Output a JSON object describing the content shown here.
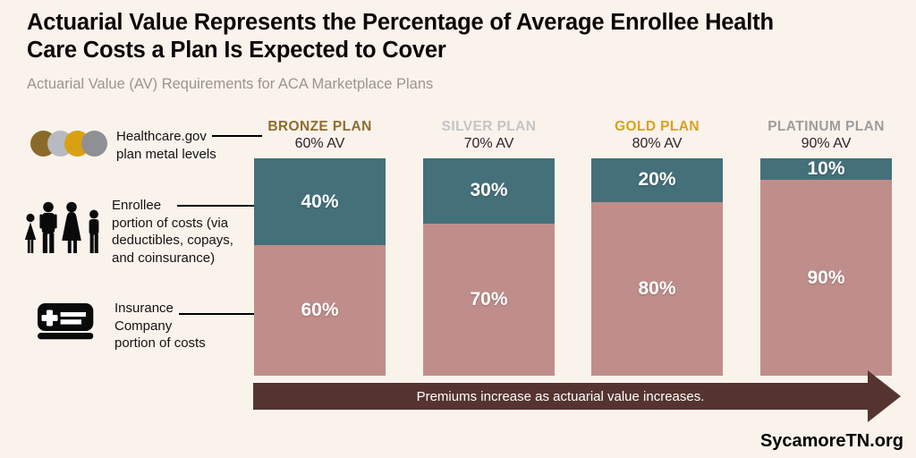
{
  "colors": {
    "background": "#faf3ec",
    "title_text": "#0c0706",
    "subtitle_text": "#9c948c",
    "av_label_text": "#33202a",
    "connector_line": "#000000",
    "arrow": "#553430",
    "bar_label_text": "#ffffff"
  },
  "header": {
    "title": "Actuarial Value Represents the Percentage of Average Enrollee Health\nCare Costs a Plan Is Expected to Cover",
    "subtitle": "Actuarial Value (AV) Requirements for ACA Marketplace Plans"
  },
  "legend": {
    "metal_colors": {
      "bronze": "#8a6a28",
      "silver": "#b7bac0",
      "gold": "#d9a112",
      "platinum": "#8e9093"
    },
    "items": [
      {
        "id": "metal-levels",
        "icon": "metal-circles-icon",
        "label": "Healthcare.gov\nplan metal levels"
      },
      {
        "id": "enrollee",
        "icon": "family-icon",
        "label": "Enrollee\nportion of costs (via\ndeductibles, copays,\nand coinsurance)"
      },
      {
        "id": "insurance",
        "icon": "insurance-card-icon",
        "label": "Insurance\nCompany\nportion of costs"
      }
    ]
  },
  "chart_data": {
    "type": "bar",
    "stacked": true,
    "orientation": "vertical",
    "categories": [
      "BRONZE PLAN",
      "SILVER PLAN",
      "GOLD PLAN",
      "PLATINUM PLAN"
    ],
    "av_labels": [
      "60% AV",
      "70% AV",
      "80% AV",
      "90% AV"
    ],
    "plan_colors": [
      "#8d6e2f",
      "#c4c4c4",
      "#d9a11b",
      "#9d9d9d"
    ],
    "series": [
      {
        "name": "Enrollee portion of costs (via deductibles, copays, and coinsurance)",
        "color": "#44707a",
        "values": [
          40,
          30,
          20,
          10
        ],
        "labels": [
          "40%",
          "30%",
          "20%",
          "10%"
        ]
      },
      {
        "name": "Insurance Company portion of costs",
        "color": "#bf8e8b",
        "values": [
          60,
          70,
          80,
          90
        ],
        "labels": [
          "60%",
          "70%",
          "80%",
          "90%"
        ]
      }
    ],
    "unit": "percent",
    "ylim": [
      0,
      100
    ],
    "grid": false,
    "legend_position": "left"
  },
  "arrow": {
    "label": "Premiums increase as actuarial value increases."
  },
  "footer": {
    "brand": "SycamoreTN.org"
  }
}
